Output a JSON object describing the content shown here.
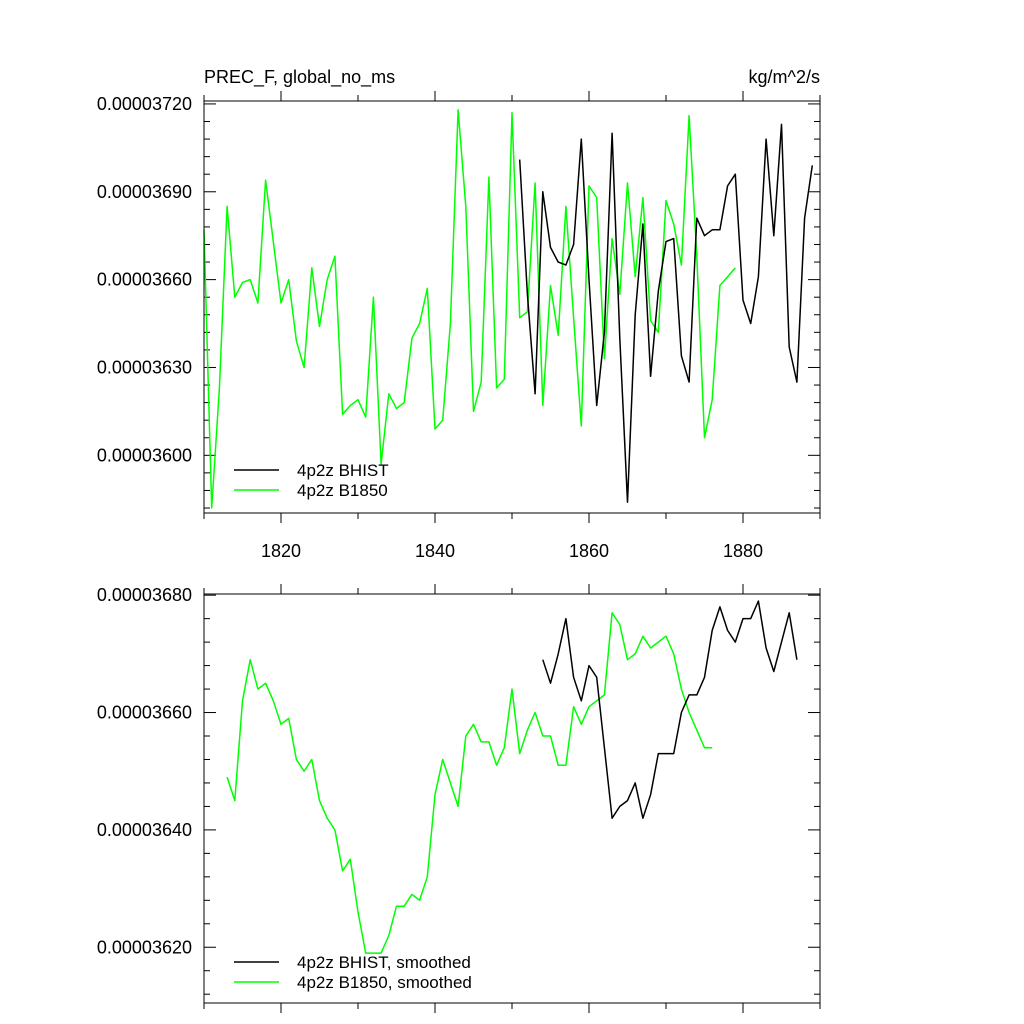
{
  "chart_data": [
    {
      "type": "line",
      "title": "PREC_F, global_no_ms",
      "units": "kg/m^2/s",
      "xlim": [
        1810,
        1890
      ],
      "ylim": [
        3.5803e-05,
        3.721e-05
      ],
      "xticks": [
        1820,
        1840,
        1860,
        1880
      ],
      "yticks": [
        3.72e-05,
        3.69e-05,
        3.66e-05,
        3.63e-05,
        3.6e-05
      ],
      "ytick_labels": [
        "0.00003720",
        "0.00003690",
        "0.00003660",
        "0.00003630",
        "0.00003600"
      ],
      "legend": "bottom-left",
      "series": [
        {
          "name": "4p2z BHIST",
          "color": "#000000",
          "x": [
            1851,
            1852,
            1853,
            1854,
            1855,
            1856,
            1857,
            1858,
            1859,
            1860,
            1861,
            1862,
            1863,
            1864,
            1865,
            1866,
            1867,
            1868,
            1869,
            1870,
            1871,
            1872,
            1873,
            1874,
            1875,
            1876,
            1877,
            1878,
            1879,
            1880,
            1881,
            1882,
            1883,
            1884,
            1885,
            1886,
            1887,
            1888,
            1889
          ],
          "y": [
            3.701e-05,
            3.655e-05,
            3.621e-05,
            3.69e-05,
            3.671e-05,
            3.666e-05,
            3.665e-05,
            3.672e-05,
            3.708e-05,
            3.66e-05,
            3.617e-05,
            3.642e-05,
            3.71e-05,
            3.64e-05,
            3.584e-05,
            3.648e-05,
            3.679e-05,
            3.627e-05,
            3.656e-05,
            3.673e-05,
            3.674e-05,
            3.634e-05,
            3.625e-05,
            3.681e-05,
            3.675e-05,
            3.677e-05,
            3.677e-05,
            3.692e-05,
            3.696e-05,
            3.653e-05,
            3.645e-05,
            3.661e-05,
            3.708e-05,
            3.675e-05,
            3.713e-05,
            3.637e-05,
            3.625e-05,
            3.681e-05,
            3.699e-05
          ]
        },
        {
          "name": "4p2z B1850",
          "color": "#00ff00",
          "x": [
            1810,
            1811,
            1812,
            1813,
            1814,
            1815,
            1816,
            1817,
            1818,
            1819,
            1820,
            1821,
            1822,
            1823,
            1824,
            1825,
            1826,
            1827,
            1828,
            1829,
            1830,
            1831,
            1832,
            1833,
            1834,
            1835,
            1836,
            1837,
            1838,
            1839,
            1840,
            1841,
            1842,
            1843,
            1844,
            1845,
            1846,
            1847,
            1848,
            1849,
            1850,
            1851,
            1852,
            1853,
            1854,
            1855,
            1856,
            1857,
            1858,
            1859,
            1860,
            1861,
            1862,
            1863,
            1864,
            1865,
            1866,
            1867,
            1868,
            1869,
            1870,
            1871,
            1872,
            1873,
            1874,
            1875,
            1876,
            1877,
            1878,
            1879
          ],
          "y": [
            3.677e-05,
            3.582e-05,
            3.623e-05,
            3.685e-05,
            3.654e-05,
            3.659e-05,
            3.66e-05,
            3.652e-05,
            3.694e-05,
            3.673e-05,
            3.652e-05,
            3.66e-05,
            3.639e-05,
            3.63e-05,
            3.664e-05,
            3.644e-05,
            3.66e-05,
            3.668e-05,
            3.614e-05,
            3.617e-05,
            3.619e-05,
            3.613e-05,
            3.654e-05,
            3.597e-05,
            3.621e-05,
            3.616e-05,
            3.618e-05,
            3.64e-05,
            3.645e-05,
            3.657e-05,
            3.609e-05,
            3.612e-05,
            3.645e-05,
            3.718e-05,
            3.685e-05,
            3.615e-05,
            3.625e-05,
            3.695e-05,
            3.623e-05,
            3.626e-05,
            3.717e-05,
            3.647e-05,
            3.649e-05,
            3.693e-05,
            3.617e-05,
            3.658e-05,
            3.641e-05,
            3.685e-05,
            3.647e-05,
            3.61e-05,
            3.692e-05,
            3.688e-05,
            3.633e-05,
            3.674e-05,
            3.655e-05,
            3.693e-05,
            3.661e-05,
            3.688e-05,
            3.646e-05,
            3.642e-05,
            3.687e-05,
            3.679e-05,
            3.665e-05,
            3.716e-05,
            3.668e-05,
            3.606e-05,
            3.619e-05,
            3.658e-05,
            3.661e-05,
            3.664e-05
          ]
        }
      ]
    },
    {
      "type": "line",
      "title": "",
      "xlim": [
        1810,
        1890
      ],
      "ylim": [
        3.6105e-05,
        3.6802e-05
      ],
      "xticks": [
        1820,
        1840,
        1860,
        1880
      ],
      "yticks": [
        3.68e-05,
        3.66e-05,
        3.64e-05,
        3.62e-05
      ],
      "ytick_labels": [
        "0.00003680",
        "0.00003660",
        "0.00003640",
        "0.00003620"
      ],
      "legend": "bottom-left",
      "series": [
        {
          "name": "4p2z BHIST, smoothed",
          "color": "#000000",
          "x": [
            1854,
            1855,
            1856,
            1857,
            1858,
            1859,
            1860,
            1861,
            1862,
            1863,
            1864,
            1865,
            1866,
            1867,
            1868,
            1869,
            1870,
            1871,
            1872,
            1873,
            1874,
            1875,
            1876,
            1877,
            1878,
            1879,
            1880,
            1881,
            1882,
            1883,
            1884,
            1885,
            1886,
            1887
          ],
          "y": [
            3.669e-05,
            3.665e-05,
            3.67e-05,
            3.676e-05,
            3.666e-05,
            3.662e-05,
            3.668e-05,
            3.666e-05,
            3.654e-05,
            3.642e-05,
            3.644e-05,
            3.645e-05,
            3.648e-05,
            3.642e-05,
            3.646e-05,
            3.653e-05,
            3.653e-05,
            3.653e-05,
            3.66e-05,
            3.663e-05,
            3.663e-05,
            3.666e-05,
            3.674e-05,
            3.678e-05,
            3.674e-05,
            3.672e-05,
            3.676e-05,
            3.676e-05,
            3.679e-05,
            3.671e-05,
            3.667e-05,
            3.672e-05,
            3.677e-05,
            3.669e-05
          ]
        },
        {
          "name": "4p2z B1850, smoothed",
          "color": "#00ff00",
          "x": [
            1813,
            1814,
            1815,
            1816,
            1817,
            1818,
            1819,
            1820,
            1821,
            1822,
            1823,
            1824,
            1825,
            1826,
            1827,
            1828,
            1829,
            1830,
            1831,
            1832,
            1833,
            1834,
            1835,
            1836,
            1837,
            1838,
            1839,
            1840,
            1841,
            1842,
            1843,
            1844,
            1845,
            1846,
            1847,
            1848,
            1849,
            1850,
            1851,
            1852,
            1853,
            1854,
            1855,
            1856,
            1857,
            1858,
            1859,
            1860,
            1861,
            1862,
            1863,
            1864,
            1865,
            1866,
            1867,
            1868,
            1869,
            1870,
            1871,
            1872,
            1873,
            1874,
            1875,
            1876
          ],
          "y": [
            3.649e-05,
            3.645e-05,
            3.662e-05,
            3.669e-05,
            3.664e-05,
            3.665e-05,
            3.662e-05,
            3.658e-05,
            3.659e-05,
            3.652e-05,
            3.65e-05,
            3.652e-05,
            3.645e-05,
            3.642e-05,
            3.64e-05,
            3.633e-05,
            3.635e-05,
            3.626e-05,
            3.619e-05,
            3.619e-05,
            3.619e-05,
            3.622e-05,
            3.627e-05,
            3.627e-05,
            3.629e-05,
            3.628e-05,
            3.632e-05,
            3.646e-05,
            3.652e-05,
            3.648e-05,
            3.644e-05,
            3.656e-05,
            3.658e-05,
            3.655e-05,
            3.655e-05,
            3.651e-05,
            3.654e-05,
            3.664e-05,
            3.653e-05,
            3.657e-05,
            3.66e-05,
            3.656e-05,
            3.656e-05,
            3.651e-05,
            3.651e-05,
            3.661e-05,
            3.658e-05,
            3.661e-05,
            3.662e-05,
            3.663e-05,
            3.677e-05,
            3.675e-05,
            3.669e-05,
            3.67e-05,
            3.673e-05,
            3.671e-05,
            3.672e-05,
            3.673e-05,
            3.67e-05,
            3.664e-05,
            3.66e-05,
            3.657e-05,
            3.654e-05,
            3.654e-05
          ]
        }
      ]
    }
  ]
}
